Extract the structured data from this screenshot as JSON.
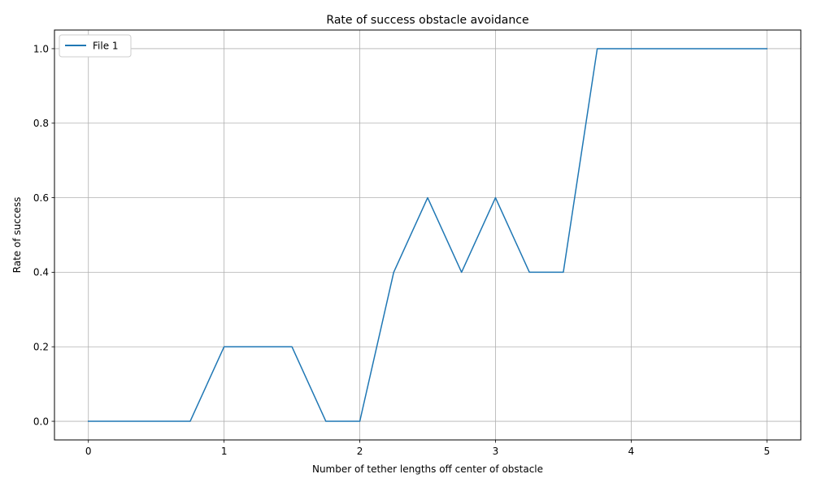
{
  "chart_data": {
    "type": "line",
    "title": "Rate of success obstacle avoidance",
    "xlabel": "Number of tether lengths off center of obstacle",
    "ylabel": "Rate of success",
    "xlim": [
      -0.25,
      5.25
    ],
    "ylim": [
      -0.05,
      1.05
    ],
    "xticks": [
      0,
      1,
      2,
      3,
      4,
      5
    ],
    "xtick_labels": [
      "0",
      "1",
      "2",
      "3",
      "4",
      "5"
    ],
    "yticks": [
      0.0,
      0.2,
      0.4,
      0.6,
      0.8,
      1.0
    ],
    "ytick_labels": [
      "0.0",
      "0.2",
      "0.4",
      "0.6",
      "0.8",
      "1.0"
    ],
    "grid": true,
    "legend_position": "top-left",
    "series": [
      {
        "name": "File 1",
        "color": "#1f77b4",
        "x": [
          0,
          0.25,
          0.5,
          0.75,
          1.0,
          1.25,
          1.5,
          1.75,
          2.0,
          2.25,
          2.5,
          2.75,
          3.0,
          3.25,
          3.5,
          3.75,
          4.0,
          4.25,
          4.5,
          4.75,
          5.0
        ],
        "y": [
          0.0,
          0.0,
          0.0,
          0.0,
          0.2,
          0.2,
          0.2,
          0.0,
          0.0,
          0.4,
          0.6,
          0.4,
          0.6,
          0.4,
          0.4,
          1.0,
          1.0,
          1.0,
          1.0,
          1.0,
          1.0
        ]
      }
    ]
  }
}
